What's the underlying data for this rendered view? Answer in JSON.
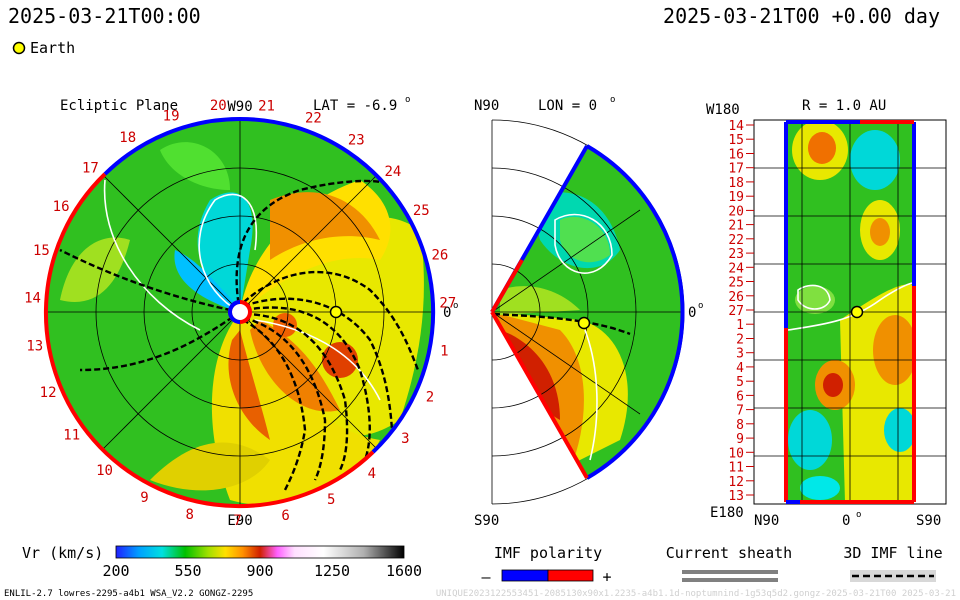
{
  "header": {
    "left_timestamp": "2025-03-21T00:00",
    "right_timestamp": "2025-03-21T00 +0.00 day",
    "legend_earth": "Earth"
  },
  "ecliptic": {
    "title": "Ecliptic Plane",
    "lat_label": "LAT = -6.9",
    "deg": "o",
    "top_label": "W90",
    "bottom_label": "E90",
    "right_label": "0",
    "rotation_labels": [
      "20",
      "21",
      "22",
      "23",
      "24",
      "25",
      "26",
      "27",
      "1",
      "2",
      "3",
      "4",
      "5",
      "6",
      "7",
      "8",
      "9",
      "10",
      "11",
      "12",
      "13",
      "14",
      "15",
      "16",
      "17",
      "18",
      "19"
    ]
  },
  "meridional": {
    "lon_label": "LON = 0",
    "deg": "o",
    "top_label": "N90",
    "bottom_label": "S90",
    "right_label": "0"
  },
  "radial": {
    "title": "R = 1.0 AU",
    "top_left_label": "W180",
    "bottom_left_label": "E180",
    "x_labels": [
      "N90",
      "0",
      "S90"
    ],
    "rows": [
      "14",
      "15",
      "16",
      "17",
      "18",
      "19",
      "20",
      "21",
      "22",
      "23",
      "24",
      "25",
      "26",
      "27",
      "1",
      "2",
      "3",
      "4",
      "5",
      "6",
      "7",
      "8",
      "9",
      "10",
      "11",
      "12",
      "13"
    ]
  },
  "colorbar": {
    "label": "Vr (km/s)",
    "ticks": [
      "200",
      "550",
      "900",
      "1250",
      "1600"
    ],
    "colors": [
      "#2020ff",
      "#00a0ff",
      "#00e0e0",
      "#00c000",
      "#80e000",
      "#ffe000",
      "#ff9000",
      "#d02000",
      "#ff60ff",
      "#ffffff",
      "#c0c0c0",
      "#000000"
    ]
  },
  "legends": {
    "imf_title": "IMF polarity",
    "imf_minus": "–",
    "imf_plus": "+",
    "sheath_title": "Current sheath",
    "imf3d_title": "3D IMF line"
  },
  "footer": {
    "left": "ENLIL-2.7 lowres-2295-a4b1 WSA_V2.2 GONGZ-2295",
    "right": "UNIQUE2023122553451-2085130x90x1.2235-a4b1.1d-noptumnind-1g53q5d2.gongz-2025-03-21T00   2025-03-21"
  },
  "colors": {
    "positive": "#ff0000",
    "negative": "#0000ff",
    "earth": "#ffff00",
    "label_red": "#cc0000"
  }
}
